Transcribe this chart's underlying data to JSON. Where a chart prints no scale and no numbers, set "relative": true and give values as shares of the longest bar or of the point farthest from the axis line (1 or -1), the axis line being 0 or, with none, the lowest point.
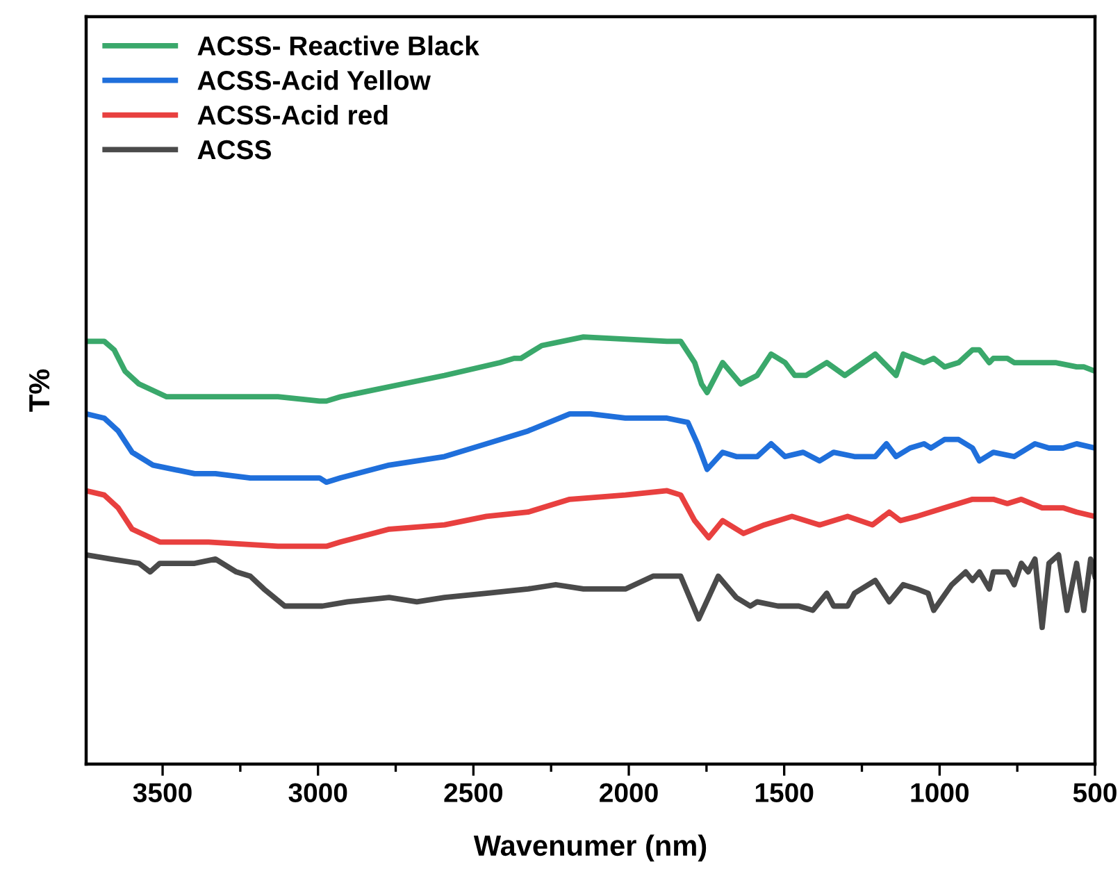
{
  "chart_data": {
    "type": "line",
    "relative": true,
    "xlabel": "Wavenumer (nm)",
    "ylabel": "T%",
    "xlim": [
      3746,
      500
    ],
    "xticks": [
      3500,
      3000,
      2500,
      2000,
      1500,
      1000,
      500
    ],
    "tick_labels": "x",
    "legend": "top left",
    "grid": false,
    "marker": "none",
    "line_style": "solid",
    "series": [
      {
        "name": "ACSS- Reactive Black",
        "color": "#3aa86b",
        "x": [
          3746,
          3688,
          3656,
          3621,
          3576,
          3487,
          3352,
          3129,
          2995,
          2973,
          2928,
          2861,
          2727,
          2593,
          2414,
          2369,
          2347,
          2280,
          2146,
          1877,
          1833,
          1788,
          1766,
          1748,
          1698,
          1640,
          1587,
          1542,
          1497,
          1466,
          1430,
          1363,
          1305,
          1207,
          1140,
          1117,
          1050,
          1019,
          984,
          939,
          894,
          872,
          840,
          827,
          782,
          760,
          627,
          559,
          536,
          500
        ],
        "values": [
          0.99,
          0.99,
          0.97,
          0.92,
          0.89,
          0.86,
          0.86,
          0.86,
          0.85,
          0.85,
          0.86,
          0.87,
          0.89,
          0.91,
          0.94,
          0.95,
          0.95,
          0.98,
          1,
          0.99,
          0.99,
          0.94,
          0.89,
          0.87,
          0.94,
          0.89,
          0.91,
          0.96,
          0.94,
          0.91,
          0.91,
          0.94,
          0.91,
          0.96,
          0.91,
          0.96,
          0.94,
          0.95,
          0.93,
          0.94,
          0.97,
          0.97,
          0.94,
          0.95,
          0.95,
          0.94,
          0.94,
          0.93,
          0.93,
          0.92
        ]
      },
      {
        "name": "ACSS-Acid Yellow",
        "color": "#1f6fdb",
        "x": [
          3746,
          3688,
          3643,
          3598,
          3531,
          3397,
          3352,
          3330,
          3218,
          2995,
          2973,
          2928,
          2771,
          2593,
          2458,
          2324,
          2190,
          2123,
          2011,
          1877,
          1810,
          1779,
          1748,
          1698,
          1654,
          1587,
          1542,
          1497,
          1439,
          1386,
          1341,
          1274,
          1207,
          1171,
          1140,
          1095,
          1050,
          1028,
          984,
          939,
          894,
          872,
          827,
          760,
          693,
          648,
          603,
          559,
          500
        ],
        "values": [
          0.82,
          0.81,
          0.78,
          0.73,
          0.7,
          0.68,
          0.68,
          0.68,
          0.67,
          0.67,
          0.66,
          0.67,
          0.7,
          0.72,
          0.75,
          0.78,
          0.82,
          0.82,
          0.81,
          0.81,
          0.8,
          0.75,
          0.69,
          0.73,
          0.72,
          0.72,
          0.75,
          0.72,
          0.73,
          0.71,
          0.73,
          0.72,
          0.72,
          0.75,
          0.72,
          0.74,
          0.75,
          0.74,
          0.76,
          0.76,
          0.74,
          0.71,
          0.73,
          0.72,
          0.75,
          0.74,
          0.74,
          0.75,
          0.74
        ]
      },
      {
        "name": "ACSS-Acid red",
        "color": "#e8403f",
        "x": [
          3746,
          3688,
          3643,
          3598,
          3509,
          3352,
          3129,
          2995,
          2973,
          2928,
          2771,
          2593,
          2458,
          2324,
          2190,
          2011,
          1877,
          1833,
          1788,
          1743,
          1698,
          1631,
          1564,
          1475,
          1386,
          1296,
          1216,
          1162,
          1126,
          1073,
          984,
          894,
          827,
          782,
          737,
          670,
          603,
          559,
          500
        ],
        "values": [
          0.64,
          0.63,
          0.6,
          0.55,
          0.52,
          0.52,
          0.51,
          0.51,
          0.51,
          0.52,
          0.55,
          0.56,
          0.58,
          0.59,
          0.62,
          0.63,
          0.64,
          0.63,
          0.57,
          0.53,
          0.57,
          0.54,
          0.56,
          0.58,
          0.56,
          0.58,
          0.56,
          0.59,
          0.57,
          0.58,
          0.6,
          0.62,
          0.62,
          0.61,
          0.62,
          0.6,
          0.6,
          0.59,
          0.58
        ]
      },
      {
        "name": "ACSS",
        "color": "#4a4a4a",
        "x": [
          3746,
          3665,
          3576,
          3540,
          3509,
          3397,
          3330,
          3263,
          3218,
          3174,
          3107,
          2995,
          2986,
          2905,
          2771,
          2682,
          2593,
          2458,
          2324,
          2235,
          2146,
          2101,
          2011,
          1922,
          1833,
          1775,
          1712,
          1654,
          1609,
          1587,
          1520,
          1453,
          1408,
          1363,
          1341,
          1296,
          1274,
          1207,
          1162,
          1117,
          1073,
          1037,
          1019,
          961,
          916,
          894,
          872,
          840,
          827,
          782,
          760,
          737,
          715,
          693,
          670,
          648,
          617,
          590,
          559,
          536,
          514,
          500
        ],
        "values": [
          0.49,
          0.48,
          0.47,
          0.45,
          0.47,
          0.47,
          0.48,
          0.45,
          0.44,
          0.41,
          0.37,
          0.37,
          0.37,
          0.38,
          0.39,
          0.38,
          0.39,
          0.4,
          0.41,
          0.42,
          0.41,
          0.41,
          0.41,
          0.44,
          0.44,
          0.34,
          0.44,
          0.39,
          0.37,
          0.38,
          0.37,
          0.37,
          0.36,
          0.4,
          0.37,
          0.37,
          0.4,
          0.43,
          0.38,
          0.42,
          0.41,
          0.4,
          0.36,
          0.42,
          0.45,
          0.43,
          0.45,
          0.41,
          0.45,
          0.45,
          0.42,
          0.47,
          0.45,
          0.48,
          0.32,
          0.47,
          0.49,
          0.36,
          0.47,
          0.36,
          0.48,
          0.44
        ]
      }
    ]
  }
}
